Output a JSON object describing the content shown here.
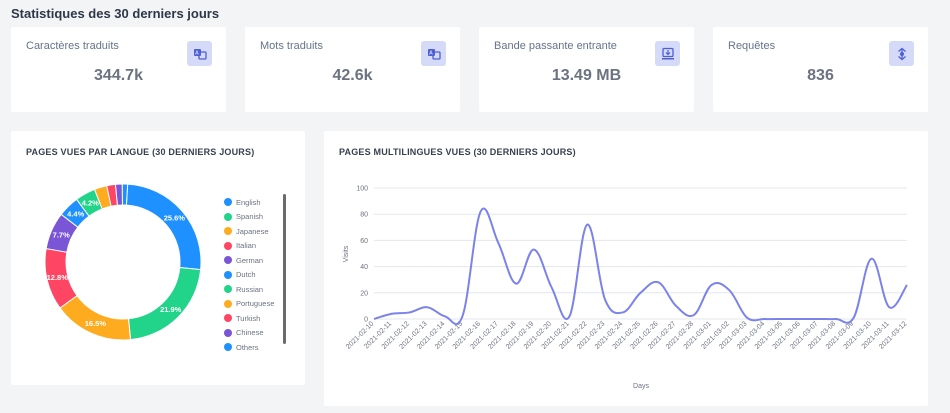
{
  "header": {
    "title": "Statistiques des 30 derniers jours"
  },
  "stats": [
    {
      "label": "Caractères traduits",
      "value": "344.7k",
      "icon": "translate-icon"
    },
    {
      "label": "Mots traduits",
      "value": "42.6k",
      "icon": "translate-icon"
    },
    {
      "label": "Bande passante entrante",
      "value": "13.49 MB",
      "icon": "download-icon"
    },
    {
      "label": "Requêtes",
      "value": "836",
      "icon": "request-icon"
    }
  ],
  "donut_panel": {
    "title": "PAGES VUES PAR LANGUE (30 DERNIERS JOURS)"
  },
  "line_panel": {
    "title": "PAGES MULTILINGUES VUES (30 DERNIERS JOURS)"
  },
  "colors": {
    "accent": "#d4daf7",
    "icon": "#4f5fd6",
    "line": "#7b83eb"
  },
  "chart_data": [
    {
      "type": "pie",
      "title": "PAGES VUES PAR LANGUE (30 DERNIERS JOURS)",
      "legend_position": "right",
      "slices": [
        {
          "name": "English",
          "value": 25.6,
          "label": "25.6%",
          "color": "#1e90ff"
        },
        {
          "name": "Spanish",
          "value": 21.9,
          "label": "21.9%",
          "color": "#21d48a"
        },
        {
          "name": "Japanese",
          "value": 16.5,
          "label": "16.5%",
          "color": "#ffab1f"
        },
        {
          "name": "Italian",
          "value": 12.8,
          "label": "12.8%",
          "color": "#ff4564"
        },
        {
          "name": "German",
          "value": 7.7,
          "label": "7.7%",
          "color": "#7a55d6"
        },
        {
          "name": "Dutch",
          "value": 4.4,
          "label": "4.4%",
          "color": "#1e90ff"
        },
        {
          "name": "Russian",
          "value": 4.2,
          "label": "4.2%",
          "color": "#21d48a"
        },
        {
          "name": "Portuguese",
          "value": 2.6,
          "label": "",
          "color": "#ffab1f"
        },
        {
          "name": "Turkish",
          "value": 1.8,
          "label": "",
          "color": "#ff4564"
        },
        {
          "name": "Chinese",
          "value": 1.4,
          "label": "",
          "color": "#7a55d6"
        },
        {
          "name": "Others",
          "value": 1.1,
          "label": "",
          "color": "#1e90ff"
        }
      ]
    },
    {
      "type": "line",
      "title": "PAGES MULTILINGUES VUES (30 DERNIERS JOURS)",
      "xlabel": "Days",
      "ylabel": "Visits",
      "ylim": [
        0,
        100
      ],
      "yticks": [
        0,
        20,
        40,
        60,
        80,
        100
      ],
      "grid": true,
      "categories": [
        "2021-02-10",
        "2021-02-11",
        "2021-02-12",
        "2021-02-13",
        "2021-02-14",
        "2021-02-15",
        "2021-02-16",
        "2021-02-17",
        "2021-02-18",
        "2021-02-19",
        "2021-02-20",
        "2021-02-21",
        "2021-02-22",
        "2021-02-23",
        "2021-02-24",
        "2021-02-25",
        "2021-02-26",
        "2021-02-27",
        "2021-02-28",
        "2021-03-01",
        "2021-03-02",
        "2021-03-03",
        "2021-03-04",
        "2021-03-05",
        "2021-03-06",
        "2021-03-07",
        "2021-03-08",
        "2021-03-09",
        "2021-03-10",
        "2021-03-11",
        "2021-03-12"
      ],
      "series": [
        {
          "values": [
            0,
            4,
            5,
            9,
            2,
            3,
            82,
            58,
            27,
            53,
            24,
            2,
            72,
            15,
            5,
            20,
            28,
            10,
            3,
            26,
            22,
            1,
            0,
            0,
            0,
            0,
            0,
            1,
            46,
            9,
            26
          ]
        }
      ]
    }
  ]
}
